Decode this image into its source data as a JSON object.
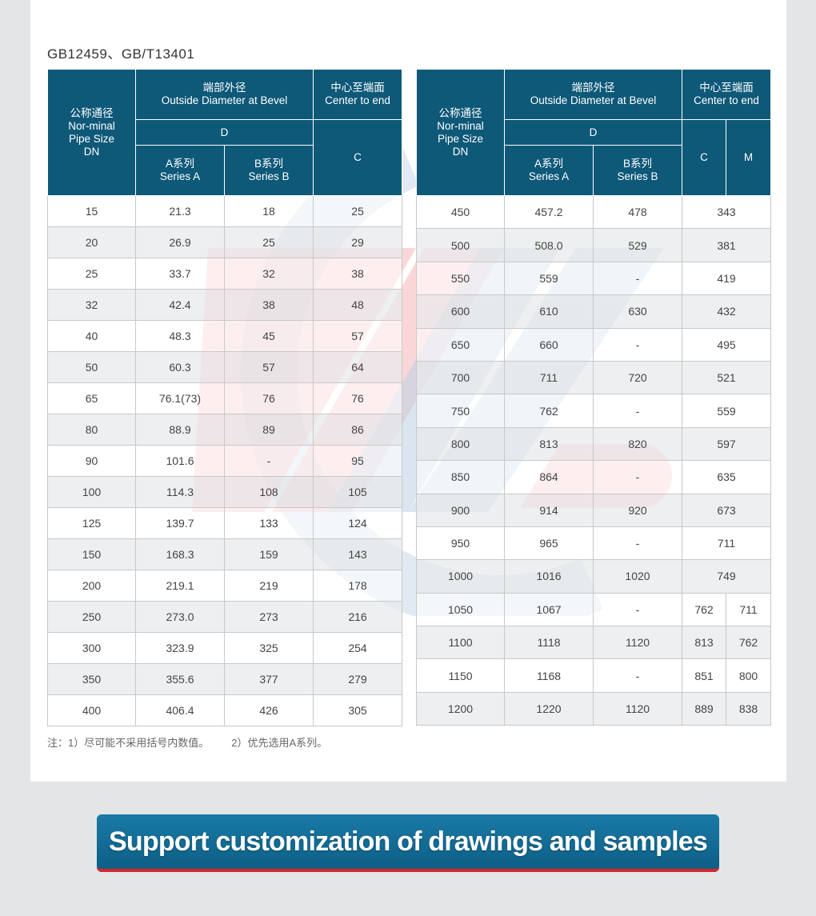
{
  "standard_title": "GB12459、GB/T13401",
  "headers": {
    "nominal": [
      "公称通径",
      "Nor-minal",
      "Pipe Size",
      "DN"
    ],
    "outside_diameter": [
      "端部外径",
      "Outside Diameter at Bevel"
    ],
    "center_to_end": [
      "中心至端面",
      "Center to end"
    ],
    "d": "D",
    "series_a": [
      "A系列",
      "Series A"
    ],
    "series_b": [
      "B系列",
      "Series B"
    ],
    "c": "C",
    "m": "M"
  },
  "left_rows": [
    [
      "15",
      "21.3",
      "18",
      "25"
    ],
    [
      "20",
      "26.9",
      "25",
      "29"
    ],
    [
      "25",
      "33.7",
      "32",
      "38"
    ],
    [
      "32",
      "42.4",
      "38",
      "48"
    ],
    [
      "40",
      "48.3",
      "45",
      "57"
    ],
    [
      "50",
      "60.3",
      "57",
      "64"
    ],
    [
      "65",
      "76.1(73)",
      "76",
      "76"
    ],
    [
      "80",
      "88.9",
      "89",
      "86"
    ],
    [
      "90",
      "101.6",
      "-",
      "95"
    ],
    [
      "100",
      "114.3",
      "108",
      "105"
    ],
    [
      "125",
      "139.7",
      "133",
      "124"
    ],
    [
      "150",
      "168.3",
      "159",
      "143"
    ],
    [
      "200",
      "219.1",
      "219",
      "178"
    ],
    [
      "250",
      "273.0",
      "273",
      "216"
    ],
    [
      "300",
      "323.9",
      "325",
      "254"
    ],
    [
      "350",
      "355.6",
      "377",
      "279"
    ],
    [
      "400",
      "406.4",
      "426",
      "305"
    ]
  ],
  "right_rows": [
    [
      "450",
      "457.2",
      "478",
      "343"
    ],
    [
      "500",
      "508.0",
      "529",
      "381"
    ],
    [
      "550",
      "559",
      "-",
      "419"
    ],
    [
      "600",
      "610",
      "630",
      "432"
    ],
    [
      "650",
      "660",
      "-",
      "495"
    ],
    [
      "700",
      "711",
      "720",
      "521"
    ],
    [
      "750",
      "762",
      "-",
      "559"
    ],
    [
      "800",
      "813",
      "820",
      "597"
    ],
    [
      "850",
      "864",
      "-",
      "635"
    ],
    [
      "900",
      "914",
      "920",
      "673"
    ],
    [
      "950",
      "965",
      "-",
      "711"
    ],
    [
      "1000",
      "1016",
      "1020",
      "749"
    ],
    [
      "1050",
      "1067",
      "-",
      "762",
      "711"
    ],
    [
      "1100",
      "1118",
      "1120",
      "813",
      "762"
    ],
    [
      "1150",
      "1168",
      "-",
      "851",
      "800"
    ],
    [
      "1200",
      "1220",
      "1120",
      "889",
      "838"
    ]
  ],
  "notes": [
    "注：1）尽可能不采用括号内数值。",
    "2）优先选用A系列。"
  ],
  "banner_text": "Support customization of drawings and samples",
  "colors": {
    "header": "#0e5878",
    "banner": "#1a7aa6",
    "banner_accent": "#d3282f"
  }
}
